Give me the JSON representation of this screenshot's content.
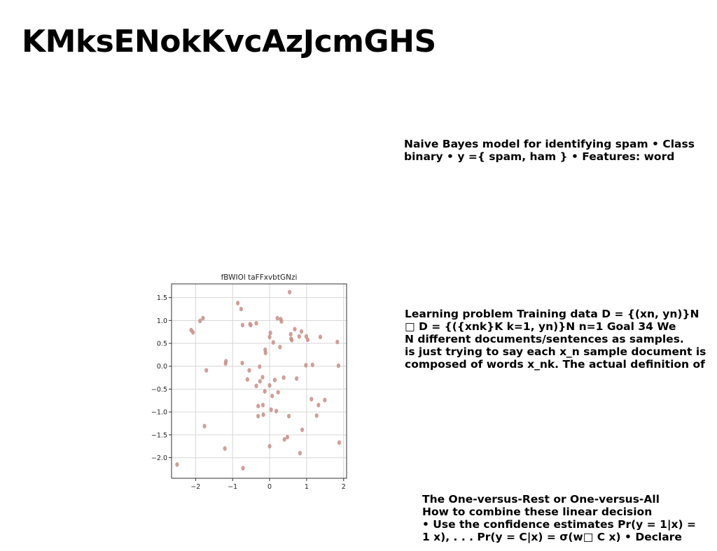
{
  "page": {
    "title": "KMksENokKvcAzJcmGHS",
    "blocks": [
      {
        "lines": [
          "Naive Bayes model for identifying spam • Class",
          "binary • y ={ spam, ham } • Features: word"
        ]
      },
      {
        "lines": [
          "Learning problem Training data D = {(xn, yn)}N",
          "□ D = {({xnk}K k=1, yn)}N n=1 Goal 34 We",
          "N different documents/sentences as samples.",
          "is just trying to say each x_n sample document is",
          "composed of words x_nk. The actual definition of"
        ]
      },
      {
        "lines": [
          "The One-versus-Rest or One-versus-All",
          "How to combine these linear decision",
          "• Use the confidence estimates Pr(y = 1|x) =",
          "1 x), . . . Pr(y = C|x) = σ(w□ C x) • Declare"
        ]
      }
    ]
  },
  "chart_data": {
    "type": "scatter",
    "title": "fBWIOl taFFxvbtGNzi",
    "xlabel": "",
    "ylabel": "",
    "xlim": [
      -2.65,
      2.08
    ],
    "ylim": [
      -2.45,
      1.8
    ],
    "xticks": [
      -2,
      -1,
      0,
      1,
      2
    ],
    "yticks": [
      1.5,
      1.0,
      0.5,
      0.0,
      -0.5,
      -1.0,
      -1.5,
      -2.0
    ],
    "xtick_labels": [
      "−2",
      "−1",
      "0",
      "1",
      "2"
    ],
    "ytick_labels": [
      "1.5",
      "1.0",
      "0.5",
      "0.0",
      "−0.5",
      "−1.0",
      "−1.5",
      "−2.0"
    ],
    "grid": true,
    "marker_color": "#c98e86",
    "points": [
      [
        -2.5,
        -2.15
      ],
      [
        -2.12,
        0.79
      ],
      [
        -2.07,
        0.74
      ],
      [
        -1.88,
        0.99
      ],
      [
        -1.8,
        1.05
      ],
      [
        -1.76,
        -1.31
      ],
      [
        -1.71,
        -0.09
      ],
      [
        -1.21,
        -1.8
      ],
      [
        -1.19,
        0.06
      ],
      [
        -1.18,
        0.11
      ],
      [
        -0.86,
        1.38
      ],
      [
        -0.77,
        1.25
      ],
      [
        -0.74,
        0.07
      ],
      [
        -0.73,
        0.9
      ],
      [
        -0.72,
        -2.23
      ],
      [
        -0.6,
        -0.29
      ],
      [
        -0.55,
        -0.09
      ],
      [
        -0.53,
        0.92
      ],
      [
        -0.51,
        0.9
      ],
      [
        -0.36,
        0.94
      ],
      [
        -0.36,
        -0.43
      ],
      [
        -0.31,
        -0.87
      ],
      [
        -0.31,
        -1.09
      ],
      [
        -0.27,
        -0.01
      ],
      [
        -0.26,
        -0.33
      ],
      [
        -0.19,
        -0.24
      ],
      [
        -0.18,
        -0.85
      ],
      [
        -0.17,
        -1.06
      ],
      [
        -0.13,
        -0.55
      ],
      [
        -0.12,
        0.36
      ],
      [
        -0.11,
        0.29
      ],
      [
        0.0,
        0.64
      ],
      [
        0.0,
        -1.75
      ],
      [
        0.0,
        -0.42
      ],
      [
        0.02,
        0.73
      ],
      [
        0.04,
        -0.95
      ],
      [
        0.07,
        -0.65
      ],
      [
        0.1,
        0.52
      ],
      [
        0.14,
        -0.3
      ],
      [
        0.18,
        -0.98
      ],
      [
        0.21,
        1.05
      ],
      [
        0.23,
        -0.57
      ],
      [
        0.28,
        0.42
      ],
      [
        0.3,
        1.03
      ],
      [
        0.32,
        0.98
      ],
      [
        0.38,
        -0.25
      ],
      [
        0.4,
        -1.6
      ],
      [
        0.48,
        -1.55
      ],
      [
        0.52,
        -1.09
      ],
      [
        0.54,
        1.62
      ],
      [
        0.57,
        0.7
      ],
      [
        0.58,
        0.6
      ],
      [
        0.6,
        0.57
      ],
      [
        0.68,
        0.81
      ],
      [
        0.73,
        -0.27
      ],
      [
        0.8,
        0.65
      ],
      [
        0.82,
        -1.9
      ],
      [
        0.86,
        0.76
      ],
      [
        0.88,
        -1.39
      ],
      [
        0.98,
        0.02
      ],
      [
        0.99,
        0.65
      ],
      [
        1.03,
        0.58
      ],
      [
        1.13,
        -0.72
      ],
      [
        1.16,
        0.03
      ],
      [
        1.27,
        -1.08
      ],
      [
        1.32,
        -0.85
      ],
      [
        1.37,
        0.64
      ],
      [
        1.49,
        -0.74
      ],
      [
        1.83,
        0.53
      ],
      [
        1.86,
        0.01
      ],
      [
        1.88,
        -1.67
      ]
    ]
  }
}
